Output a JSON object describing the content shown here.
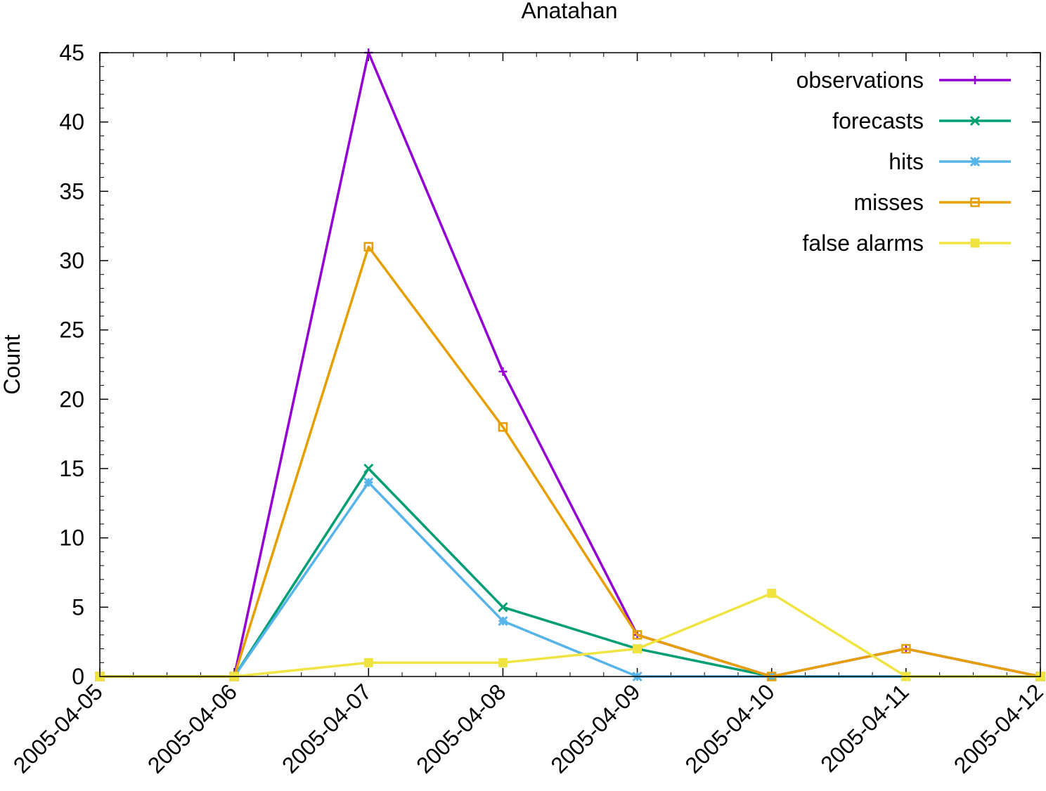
{
  "chart_data": {
    "type": "line",
    "title": "Anatahan",
    "xlabel": "",
    "ylabel": "Count",
    "x": [
      "2005-04-05",
      "2005-04-06",
      "2005-04-07",
      "2005-04-08",
      "2005-04-09",
      "2005-04-10",
      "2005-04-11",
      "2005-04-12"
    ],
    "ylim": [
      0,
      45
    ],
    "yticks": [
      0,
      5,
      10,
      15,
      20,
      25,
      30,
      35,
      40,
      45
    ],
    "grid": false,
    "legend_position": "top-right",
    "series": [
      {
        "name": "observations",
        "color": "#9400d3",
        "marker": "plus",
        "values": [
          0,
          0,
          45,
          22,
          3,
          0,
          2,
          0
        ]
      },
      {
        "name": "forecasts",
        "color": "#009e73",
        "marker": "cross",
        "values": [
          0,
          0,
          15,
          5,
          2,
          0,
          0,
          0
        ]
      },
      {
        "name": "hits",
        "color": "#56b4e9",
        "marker": "star",
        "values": [
          0,
          0,
          14,
          4,
          0,
          0,
          0,
          0
        ]
      },
      {
        "name": "misses",
        "color": "#e69f00",
        "marker": "open-square",
        "values": [
          0,
          0,
          31,
          18,
          3,
          0,
          2,
          0
        ]
      },
      {
        "name": "false alarms",
        "color": "#f0e442",
        "marker": "filled-square",
        "values": [
          0,
          0,
          1,
          1,
          2,
          6,
          0,
          0
        ]
      }
    ]
  }
}
